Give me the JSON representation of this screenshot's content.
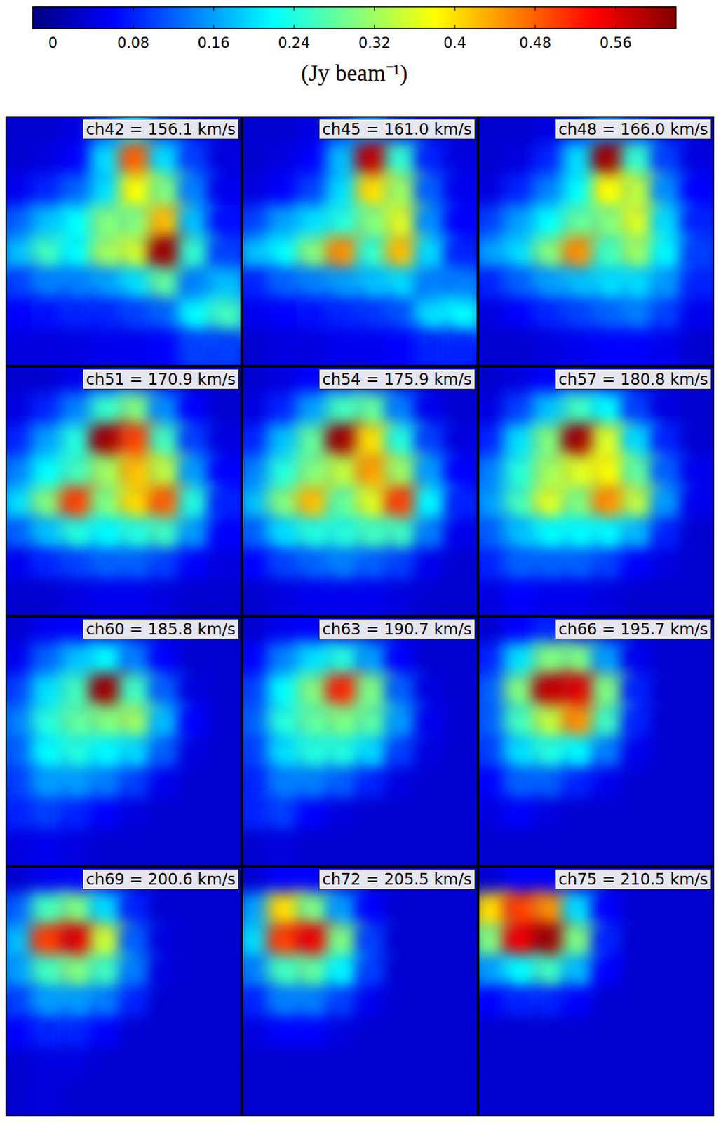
{
  "chart_data": {
    "type": "heatmap",
    "tick_labels": false,
    "colorbar": {
      "label": "(Jy beam⁻¹)",
      "range": [
        -0.02,
        0.62
      ],
      "ticks": [
        0,
        0.08,
        0.16,
        0.24,
        0.32,
        0.4,
        0.48,
        0.56
      ]
    },
    "panels": [
      {
        "title": "ch42 = 156.1 km/s",
        "cells": [
          [
            0.03,
            0.03,
            0.04,
            0.12,
            0.2,
            0.1,
            0.06,
            0.03
          ],
          [
            0.03,
            0.04,
            0.06,
            0.2,
            0.48,
            0.2,
            0.1,
            0.04
          ],
          [
            0.05,
            0.08,
            0.12,
            0.2,
            0.38,
            0.3,
            0.14,
            0.05
          ],
          [
            0.12,
            0.18,
            0.22,
            0.3,
            0.3,
            0.42,
            0.18,
            0.07
          ],
          [
            0.18,
            0.26,
            0.22,
            0.32,
            0.35,
            0.6,
            0.25,
            0.1
          ],
          [
            0.1,
            0.14,
            0.14,
            0.16,
            0.2,
            0.28,
            0.14,
            0.18
          ],
          [
            0.06,
            0.07,
            0.08,
            0.08,
            0.1,
            0.12,
            0.22,
            0.26
          ],
          [
            0.04,
            0.04,
            0.04,
            0.05,
            0.05,
            0.06,
            0.1,
            0.1
          ]
        ]
      },
      {
        "title": "ch45 = 161.0 km/s",
        "cells": [
          [
            0.03,
            0.03,
            0.04,
            0.1,
            0.16,
            0.08,
            0.04,
            0.03
          ],
          [
            0.03,
            0.04,
            0.06,
            0.18,
            0.58,
            0.25,
            0.08,
            0.04
          ],
          [
            0.04,
            0.06,
            0.1,
            0.2,
            0.4,
            0.32,
            0.12,
            0.05
          ],
          [
            0.1,
            0.16,
            0.2,
            0.24,
            0.3,
            0.36,
            0.15,
            0.06
          ],
          [
            0.18,
            0.22,
            0.3,
            0.45,
            0.25,
            0.42,
            0.2,
            0.08
          ],
          [
            0.08,
            0.12,
            0.14,
            0.16,
            0.18,
            0.2,
            0.14,
            0.14
          ],
          [
            0.05,
            0.06,
            0.07,
            0.08,
            0.09,
            0.11,
            0.2,
            0.22
          ],
          [
            0.03,
            0.04,
            0.04,
            0.05,
            0.05,
            0.06,
            0.08,
            0.08
          ]
        ]
      },
      {
        "title": "ch48 = 166.0 km/s",
        "cells": [
          [
            0.03,
            0.03,
            0.04,
            0.08,
            0.15,
            0.1,
            0.05,
            0.03
          ],
          [
            0.03,
            0.04,
            0.08,
            0.2,
            0.6,
            0.25,
            0.1,
            0.04
          ],
          [
            0.04,
            0.08,
            0.14,
            0.22,
            0.38,
            0.34,
            0.15,
            0.06
          ],
          [
            0.1,
            0.16,
            0.22,
            0.28,
            0.3,
            0.36,
            0.2,
            0.08
          ],
          [
            0.16,
            0.2,
            0.3,
            0.45,
            0.26,
            0.32,
            0.22,
            0.1
          ],
          [
            0.08,
            0.12,
            0.16,
            0.18,
            0.2,
            0.2,
            0.16,
            0.08
          ],
          [
            0.04,
            0.06,
            0.08,
            0.1,
            0.12,
            0.14,
            0.1,
            0.05
          ],
          [
            0.03,
            0.03,
            0.04,
            0.05,
            0.06,
            0.06,
            0.05,
            0.03
          ]
        ]
      },
      {
        "title": "ch51 = 170.9 km/s",
        "cells": [
          [
            0.03,
            0.03,
            0.05,
            0.08,
            0.1,
            0.06,
            0.03,
            0.03
          ],
          [
            0.04,
            0.08,
            0.14,
            0.25,
            0.3,
            0.15,
            0.06,
            0.03
          ],
          [
            0.08,
            0.16,
            0.24,
            0.6,
            0.5,
            0.26,
            0.1,
            0.04
          ],
          [
            0.14,
            0.22,
            0.26,
            0.32,
            0.42,
            0.34,
            0.16,
            0.06
          ],
          [
            0.2,
            0.3,
            0.5,
            0.3,
            0.4,
            0.48,
            0.24,
            0.08
          ],
          [
            0.12,
            0.18,
            0.24,
            0.22,
            0.24,
            0.26,
            0.16,
            0.06
          ],
          [
            0.05,
            0.08,
            0.1,
            0.12,
            0.12,
            0.1,
            0.06,
            0.04
          ],
          [
            0.03,
            0.03,
            0.04,
            0.05,
            0.05,
            0.04,
            0.03,
            0.03
          ]
        ]
      },
      {
        "title": "ch54 = 175.9 km/s",
        "cells": [
          [
            0.03,
            0.04,
            0.06,
            0.08,
            0.08,
            0.05,
            0.03,
            0.03
          ],
          [
            0.04,
            0.08,
            0.16,
            0.26,
            0.28,
            0.14,
            0.05,
            0.03
          ],
          [
            0.08,
            0.18,
            0.28,
            0.6,
            0.4,
            0.24,
            0.1,
            0.04
          ],
          [
            0.14,
            0.24,
            0.3,
            0.34,
            0.44,
            0.32,
            0.16,
            0.06
          ],
          [
            0.18,
            0.3,
            0.42,
            0.28,
            0.36,
            0.5,
            0.22,
            0.08
          ],
          [
            0.12,
            0.2,
            0.24,
            0.24,
            0.26,
            0.26,
            0.14,
            0.05
          ],
          [
            0.06,
            0.1,
            0.12,
            0.14,
            0.12,
            0.1,
            0.05,
            0.03
          ],
          [
            0.03,
            0.04,
            0.05,
            0.05,
            0.05,
            0.04,
            0.03,
            0.03
          ]
        ]
      },
      {
        "title": "ch57 = 180.8 km/s",
        "cells": [
          [
            0.03,
            0.04,
            0.06,
            0.08,
            0.06,
            0.04,
            0.03,
            0.03
          ],
          [
            0.04,
            0.1,
            0.18,
            0.26,
            0.22,
            0.1,
            0.04,
            0.03
          ],
          [
            0.08,
            0.2,
            0.3,
            0.6,
            0.36,
            0.2,
            0.08,
            0.03
          ],
          [
            0.14,
            0.24,
            0.32,
            0.36,
            0.38,
            0.28,
            0.12,
            0.05
          ],
          [
            0.16,
            0.26,
            0.36,
            0.3,
            0.45,
            0.34,
            0.16,
            0.05
          ],
          [
            0.12,
            0.18,
            0.22,
            0.22,
            0.22,
            0.18,
            0.08,
            0.03
          ],
          [
            0.08,
            0.12,
            0.12,
            0.12,
            0.1,
            0.06,
            0.04,
            0.03
          ],
          [
            0.04,
            0.06,
            0.05,
            0.05,
            0.04,
            0.03,
            0.03,
            0.03
          ]
        ]
      },
      {
        "title": "ch60 = 185.8 km/s",
        "cells": [
          [
            0.03,
            0.05,
            0.06,
            0.06,
            0.05,
            0.03,
            0.03,
            0.03
          ],
          [
            0.05,
            0.12,
            0.18,
            0.22,
            0.14,
            0.06,
            0.03,
            0.03
          ],
          [
            0.1,
            0.2,
            0.26,
            0.6,
            0.26,
            0.12,
            0.04,
            0.03
          ],
          [
            0.14,
            0.24,
            0.28,
            0.3,
            0.32,
            0.18,
            0.06,
            0.03
          ],
          [
            0.12,
            0.22,
            0.24,
            0.22,
            0.2,
            0.12,
            0.04,
            0.03
          ],
          [
            0.1,
            0.16,
            0.16,
            0.14,
            0.1,
            0.05,
            0.03,
            0.03
          ],
          [
            0.08,
            0.1,
            0.08,
            0.06,
            0.04,
            0.03,
            0.03,
            0.03
          ],
          [
            0.04,
            0.05,
            0.04,
            0.03,
            0.03,
            0.03,
            0.03,
            0.03
          ]
        ]
      },
      {
        "title": "ch63 = 190.7 km/s",
        "cells": [
          [
            0.03,
            0.05,
            0.06,
            0.06,
            0.04,
            0.03,
            0.03,
            0.03
          ],
          [
            0.06,
            0.14,
            0.2,
            0.24,
            0.16,
            0.06,
            0.03,
            0.03
          ],
          [
            0.1,
            0.22,
            0.3,
            0.52,
            0.3,
            0.12,
            0.04,
            0.03
          ],
          [
            0.12,
            0.24,
            0.28,
            0.3,
            0.28,
            0.16,
            0.05,
            0.03
          ],
          [
            0.1,
            0.2,
            0.24,
            0.24,
            0.2,
            0.1,
            0.04,
            0.03
          ],
          [
            0.08,
            0.14,
            0.14,
            0.12,
            0.08,
            0.04,
            0.03,
            0.03
          ],
          [
            0.08,
            0.1,
            0.06,
            0.04,
            0.03,
            0.03,
            0.03,
            0.03
          ],
          [
            0.03,
            0.04,
            0.03,
            0.03,
            0.03,
            0.03,
            0.03,
            0.03
          ]
        ]
      },
      {
        "title": "ch66 = 195.7 km/s",
        "cells": [
          [
            0.03,
            0.06,
            0.08,
            0.06,
            0.04,
            0.03,
            0.03,
            0.03
          ],
          [
            0.08,
            0.2,
            0.3,
            0.3,
            0.16,
            0.05,
            0.03,
            0.03
          ],
          [
            0.12,
            0.3,
            0.58,
            0.56,
            0.3,
            0.08,
            0.03,
            0.03
          ],
          [
            0.12,
            0.26,
            0.34,
            0.45,
            0.26,
            0.08,
            0.03,
            0.03
          ],
          [
            0.1,
            0.2,
            0.24,
            0.22,
            0.14,
            0.05,
            0.03,
            0.03
          ],
          [
            0.06,
            0.12,
            0.12,
            0.08,
            0.05,
            0.03,
            0.03,
            0.03
          ],
          [
            0.04,
            0.06,
            0.04,
            0.03,
            0.03,
            0.03,
            0.03,
            0.03
          ],
          [
            0.03,
            0.03,
            0.03,
            0.03,
            0.03,
            0.03,
            0.03,
            0.03
          ]
        ]
      },
      {
        "title": "ch69 = 200.6 km/s",
        "cells": [
          [
            0.03,
            0.05,
            0.06,
            0.05,
            0.03,
            0.03,
            0.03,
            0.03
          ],
          [
            0.12,
            0.26,
            0.3,
            0.2,
            0.08,
            0.03,
            0.03,
            0.03
          ],
          [
            0.18,
            0.5,
            0.56,
            0.35,
            0.12,
            0.04,
            0.03,
            0.03
          ],
          [
            0.16,
            0.26,
            0.3,
            0.26,
            0.14,
            0.04,
            0.03,
            0.03
          ],
          [
            0.1,
            0.16,
            0.16,
            0.14,
            0.08,
            0.03,
            0.03,
            0.03
          ],
          [
            0.06,
            0.08,
            0.08,
            0.06,
            0.03,
            0.03,
            0.03,
            0.03
          ],
          [
            0.03,
            0.04,
            0.04,
            0.03,
            0.03,
            0.03,
            0.03,
            0.03
          ],
          [
            0.03,
            0.04,
            0.03,
            0.03,
            0.03,
            0.03,
            0.03,
            0.03
          ]
        ]
      },
      {
        "title": "ch72 = 205.5 km/s",
        "cells": [
          [
            0.03,
            0.06,
            0.06,
            0.04,
            0.03,
            0.03,
            0.03,
            0.03
          ],
          [
            0.16,
            0.4,
            0.3,
            0.16,
            0.06,
            0.03,
            0.03,
            0.03
          ],
          [
            0.2,
            0.5,
            0.55,
            0.3,
            0.1,
            0.03,
            0.03,
            0.03
          ],
          [
            0.14,
            0.26,
            0.28,
            0.22,
            0.1,
            0.03,
            0.03,
            0.03
          ],
          [
            0.08,
            0.14,
            0.14,
            0.1,
            0.05,
            0.03,
            0.03,
            0.03
          ],
          [
            0.04,
            0.06,
            0.06,
            0.04,
            0.03,
            0.03,
            0.03,
            0.03
          ],
          [
            0.03,
            0.03,
            0.03,
            0.03,
            0.03,
            0.03,
            0.03,
            0.03
          ],
          [
            0.03,
            0.03,
            0.03,
            0.03,
            0.03,
            0.03,
            0.03,
            0.03
          ]
        ]
      },
      {
        "title": "ch75 = 210.5 km/s",
        "cells": [
          [
            0.03,
            0.06,
            0.06,
            0.04,
            0.03,
            0.03,
            0.03,
            0.03
          ],
          [
            0.4,
            0.5,
            0.45,
            0.2,
            0.06,
            0.03,
            0.03,
            0.03
          ],
          [
            0.3,
            0.55,
            0.6,
            0.3,
            0.08,
            0.03,
            0.03,
            0.03
          ],
          [
            0.16,
            0.22,
            0.26,
            0.18,
            0.06,
            0.03,
            0.03,
            0.03
          ],
          [
            0.06,
            0.08,
            0.08,
            0.06,
            0.03,
            0.03,
            0.03,
            0.03
          ],
          [
            0.03,
            0.03,
            0.03,
            0.03,
            0.03,
            0.03,
            0.03,
            0.03
          ],
          [
            0.03,
            0.03,
            0.03,
            0.03,
            0.03,
            0.03,
            0.03,
            0.03
          ],
          [
            0.03,
            0.03,
            0.03,
            0.03,
            0.03,
            0.03,
            0.03,
            0.03
          ]
        ]
      }
    ]
  }
}
